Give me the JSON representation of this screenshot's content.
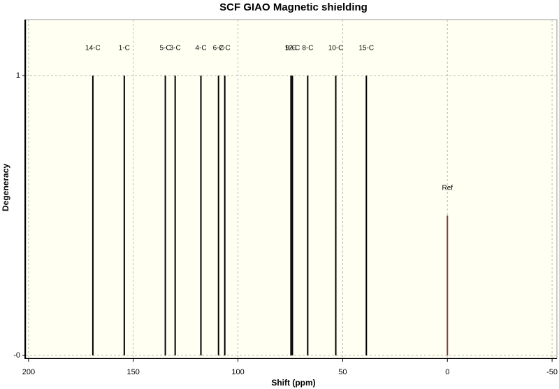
{
  "chart_data": {
    "type": "stick",
    "title": "SCF GIAO Magnetic shielding",
    "xlabel": "Shift (ppm)",
    "ylabel": "Degeneracy",
    "peaks": [
      {
        "label": "14-C",
        "x": 169.3,
        "value": 1,
        "color": "#000000"
      },
      {
        "label": "1-C",
        "x": 154.3,
        "value": 1,
        "color": "#000000"
      },
      {
        "label": "5-C",
        "x": 134.7,
        "value": 1,
        "color": "#000000"
      },
      {
        "label": "3-C",
        "x": 130,
        "value": 1,
        "color": "#000000"
      },
      {
        "label": "4-C",
        "x": 117.7,
        "value": 1,
        "color": "#000000"
      },
      {
        "label": "6-C",
        "x": 109.3,
        "value": 1,
        "color": "#000000"
      },
      {
        "label": "2-C",
        "x": 106.3,
        "value": 1,
        "color": "#000000"
      },
      {
        "label": "9-C",
        "x": 74.7,
        "value": 1,
        "color": "#000000"
      },
      {
        "label": "12-C",
        "x": 74,
        "value": 1,
        "color": "#000000"
      },
      {
        "label": "8-C",
        "x": 66.7,
        "value": 1,
        "color": "#000000"
      },
      {
        "label": "10-C",
        "x": 53.3,
        "value": 1,
        "color": "#000000"
      },
      {
        "label": "15-C",
        "x": 38.7,
        "value": 1,
        "color": "#000000"
      },
      {
        "label": "Ref",
        "x": 0,
        "value": 0.5,
        "color": "#8b3a3a"
      }
    ],
    "xlim": [
      201.3,
      -52.3
    ],
    "xticks": [
      200,
      150,
      100,
      50,
      0,
      -50
    ],
    "ylim": [
      -0.01,
      1.2
    ],
    "yticks": [
      {
        "value": 0,
        "label": "-0"
      },
      1
    ],
    "grid": true,
    "background": "#fffff2"
  }
}
